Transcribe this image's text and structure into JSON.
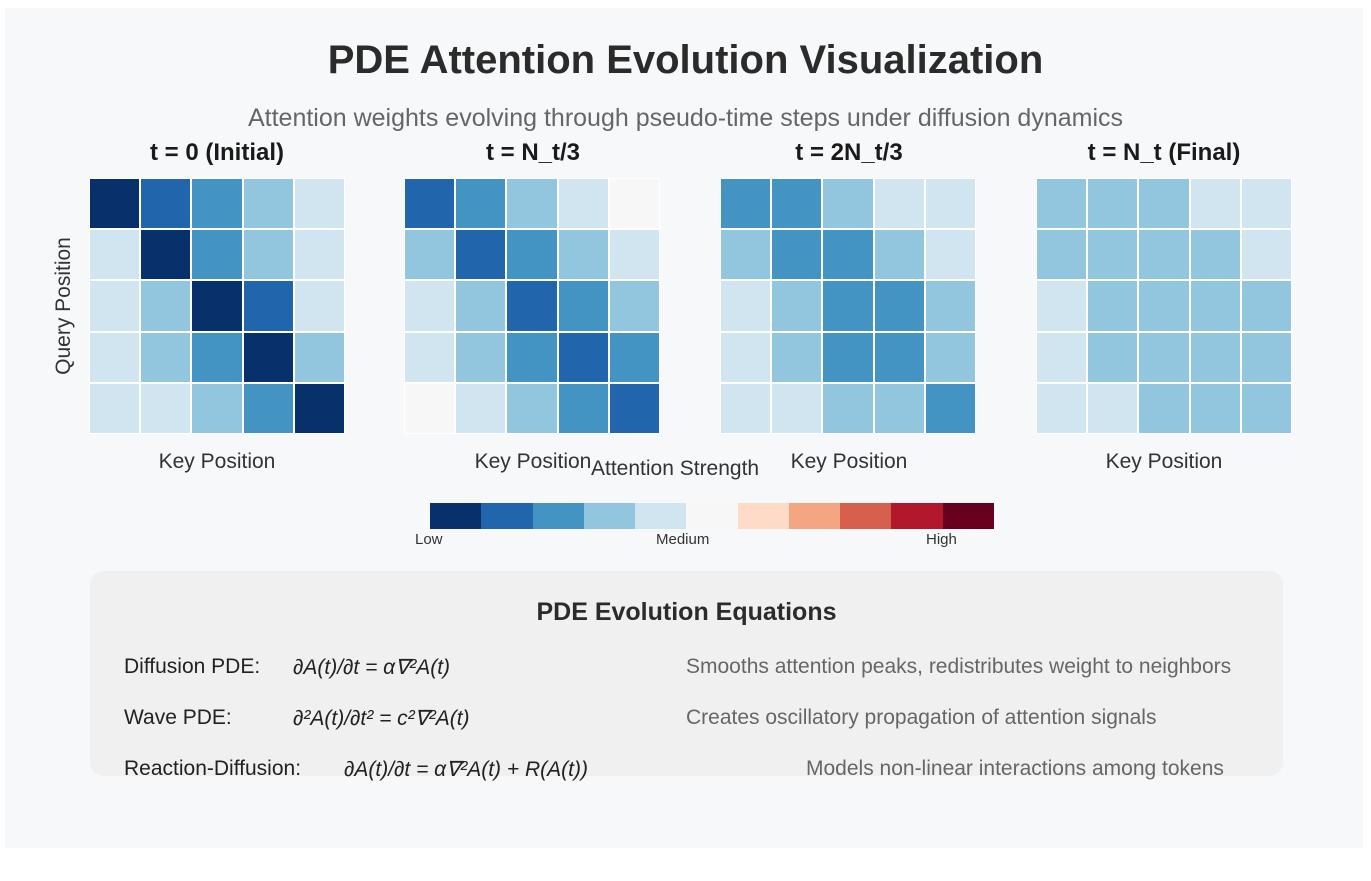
{
  "title": "PDE Attention Evolution Visualization",
  "subtitle": "Attention weights evolving through pseudo-time steps under diffusion dynamics",
  "chart_data": {
    "type": "heatmap",
    "ylabel": "Query Position",
    "xlabel": "Key Position",
    "level_scale": "0 = lightest blue (near white) ... 5 = darkest blue",
    "panels": [
      {
        "title": "t = 0 (Initial)",
        "levels": [
          [
            5,
            4,
            3,
            2,
            1
          ],
          [
            1,
            5,
            3,
            2,
            1
          ],
          [
            1,
            2,
            5,
            4,
            1
          ],
          [
            1,
            2,
            3,
            5,
            2
          ],
          [
            1,
            1,
            2,
            3,
            5
          ]
        ]
      },
      {
        "title": "t = N_t/3",
        "levels": [
          [
            4,
            3,
            2,
            1,
            0
          ],
          [
            2,
            4,
            3,
            2,
            1
          ],
          [
            1,
            2,
            4,
            3,
            2
          ],
          [
            1,
            2,
            3,
            4,
            3
          ],
          [
            0,
            1,
            2,
            3,
            4
          ]
        ]
      },
      {
        "title": "t = 2N_t/3",
        "levels": [
          [
            3,
            3,
            2,
            1,
            1
          ],
          [
            2,
            3,
            3,
            2,
            1
          ],
          [
            1,
            2,
            3,
            3,
            2
          ],
          [
            1,
            2,
            3,
            3,
            2
          ],
          [
            1,
            1,
            2,
            2,
            3
          ]
        ]
      },
      {
        "title": "t = N_t (Final)",
        "levels": [
          [
            2,
            2,
            2,
            1,
            1
          ],
          [
            2,
            2,
            2,
            2,
            1
          ],
          [
            1,
            2,
            2,
            2,
            2
          ],
          [
            1,
            2,
            2,
            2,
            2
          ],
          [
            1,
            1,
            2,
            2,
            2
          ]
        ]
      }
    ],
    "colorbar": {
      "label": "Attention Strength",
      "colors": [
        "#08306b",
        "#2166ac",
        "#4393c3",
        "#92c5de",
        "#d1e5f0",
        "#f7f7f7",
        "#fddbc7",
        "#f4a582",
        "#d6604d",
        "#b2182b",
        "#67001f"
      ],
      "ticks": [
        "Low",
        "Medium",
        "High"
      ]
    },
    "heat_colors": [
      "#f7f7f7",
      "#d1e5f0",
      "#92c5de",
      "#4393c3",
      "#2166ac",
      "#08306b"
    ]
  },
  "equations": {
    "title": "PDE Evolution Equations",
    "rows": [
      {
        "name": "Diffusion PDE:",
        "formula": "∂A(t)/∂t = α∇²A(t)",
        "description": "Smooths attention peaks, redistributes weight to neighbors"
      },
      {
        "name": "Wave PDE:",
        "formula": "∂²A(t)/∂t² = c²∇²A(t)",
        "description": "Creates oscillatory propagation of attention signals"
      },
      {
        "name": "Reaction-Diffusion:",
        "formula": "∂A(t)/∂t = α∇²A(t) + R(A(t))",
        "description": "Models non-linear interactions among tokens"
      }
    ]
  }
}
